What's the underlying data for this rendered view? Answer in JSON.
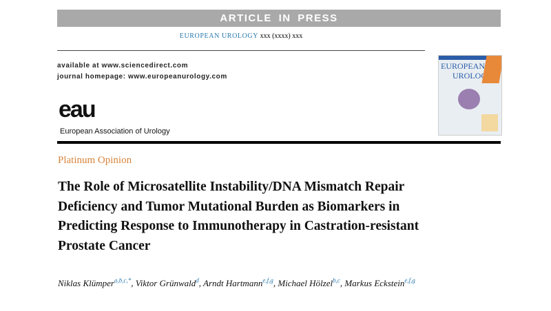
{
  "banner": "ARTICLE IN PRESS",
  "journal_line": {
    "journal": "EUROPEAN UROLOGY",
    "citation": "xxx (xxxx) xxx"
  },
  "links": [
    "available at www.sciencedirect.com",
    "journal homepage: www.europeanurology.com"
  ],
  "logo": {
    "mark": "eau",
    "name": "European Association of Urology"
  },
  "cover": {
    "title_top": "EUROPEAN",
    "title_bottom": "UROLOGY"
  },
  "section": "Platinum Opinion",
  "title_lines": [
    "The Role of Microsatellite Instability/DNA Mismatch Repair",
    "Deficiency and Tumor Mutational Burden as Biomarkers in",
    "Predicting Response to Immunotherapy in Castration-resistant",
    "Prostate Cancer"
  ],
  "authors": [
    {
      "name": "Niklas Klümper",
      "affiliations": "a,b,c,*",
      "separator": ","
    },
    {
      "name": "Viktor Grünwald",
      "affiliations": "d",
      "separator": ","
    },
    {
      "name": "Arndt Hartmann",
      "affiliations": "e,f,g",
      "separator": ","
    },
    {
      "name": "Michael Hölzel",
      "affiliations": "b,c",
      "separator": ","
    },
    {
      "name": "Markus Eckstein",
      "affiliations": "e,f,g"
    }
  ]
}
